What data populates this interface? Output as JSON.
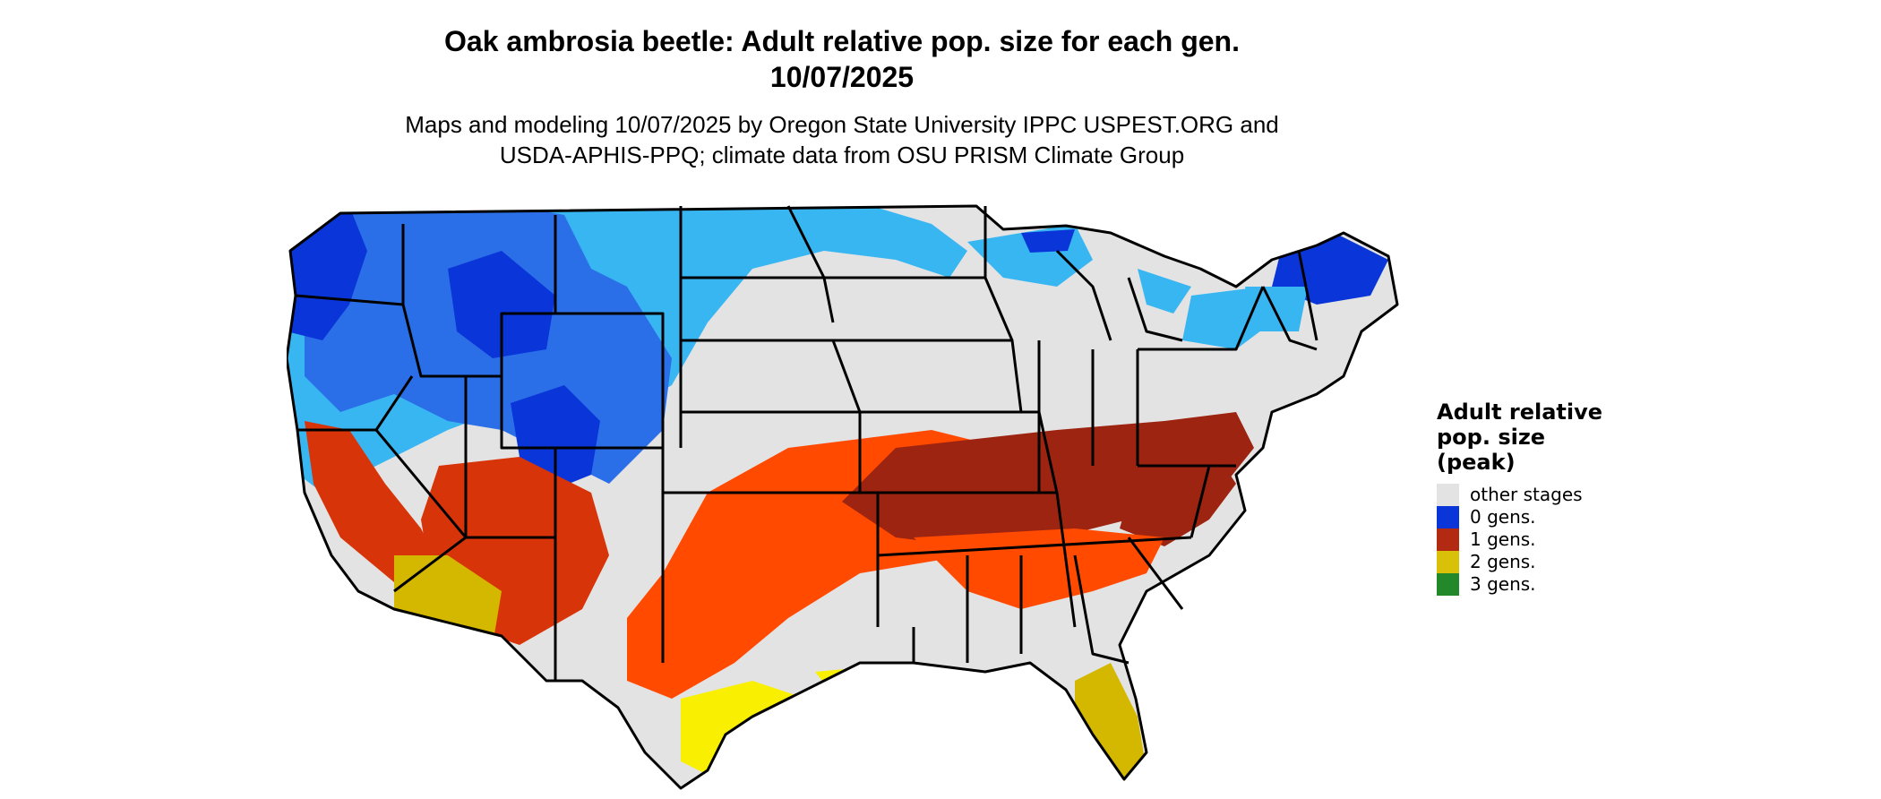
{
  "title_line1": "Oak ambrosia beetle: Adult relative pop. size for each gen.",
  "title_line2": "10/07/2025",
  "subtitle_line1": "Maps and modeling 10/07/2025 by Oregon State University IPPC USPEST.ORG and",
  "subtitle_line2": "USDA-APHIS-PPQ; climate data from OSU PRISM Climate Group",
  "legend": {
    "title_line1": "Adult relative",
    "title_line2": "pop. size",
    "title_line3": "(peak)",
    "items": [
      {
        "label": "other stages",
        "color": "#e3e3e3"
      },
      {
        "label": "0 gens.",
        "color": "#0a36d9"
      },
      {
        "label": "1 gens.",
        "color": "#b22a12"
      },
      {
        "label": "2 gens.",
        "color": "#d9c10a"
      },
      {
        "label": "3 gens.",
        "color": "#22882a"
      }
    ]
  },
  "map_colors": {
    "other_stages": "#e3e3e3",
    "zero_gens_dark": "#0a36d9",
    "zero_gens_mid": "#2b6fe8",
    "zero_gens_light": "#38b6f2",
    "one_gen_dark": "#9c2410",
    "one_gen_mid": "#d8340a",
    "one_gen_bright": "#ff4a00",
    "two_gens_bright": "#f8f000",
    "two_gens_dark": "#d4b800",
    "state_border": "#000000"
  }
}
